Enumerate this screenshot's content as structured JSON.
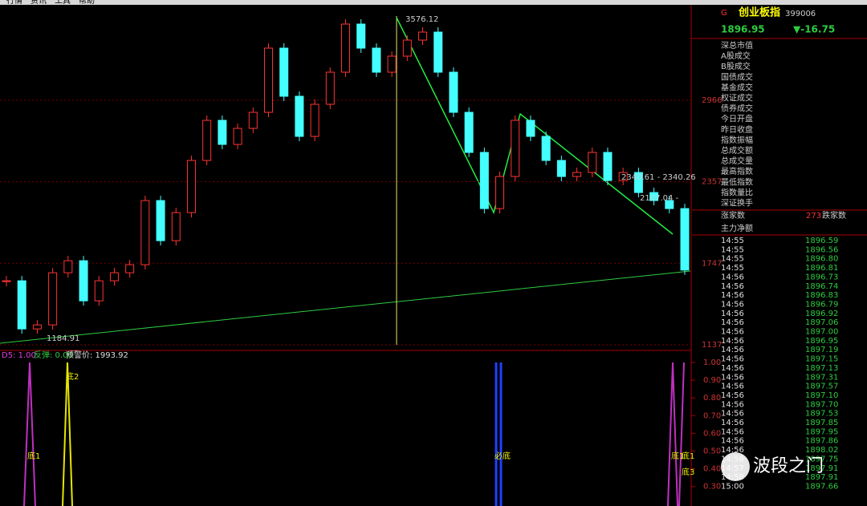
{
  "menu": [
    "行情",
    "资讯",
    "工具",
    "帮助"
  ],
  "price_chart": {
    "ylim": [
      1095,
      3686
    ],
    "yticks": [
      2966,
      2357,
      1747,
      1137
    ],
    "closes": [
      1616,
      1256,
      1286,
      1676,
      1766,
      1466,
      1616,
      1676,
      1736,
      2216,
      1916,
      2126,
      2516,
      2816,
      2636,
      2756,
      2876,
      3356,
      2996,
      2696,
      2936,
      3176,
      3536,
      3356,
      3176,
      3296,
      3416,
      3476,
      3176,
      2876,
      2576,
      2156,
      2396,
      2816,
      2696,
      2516,
      2396,
      2426,
      2576,
      2366,
      2426,
      2276,
      2216,
      2156,
      1696
    ],
    "annotations": [
      "3576.12",
      "1184.91",
      "2340.61 - 2340.26",
      "2107.04 -"
    ]
  },
  "indicator": {
    "legend": [
      "D5: 1.00",
      "反弹: 0.00",
      "预警价: 1993.92"
    ],
    "ylim": [
      0.2,
      1.07
    ],
    "yticks": [
      {
        "value": 1,
        "label": "1.00"
      },
      {
        "value": 0.9,
        "label": "0.90"
      },
      {
        "value": 0.8,
        "label": "0.80"
      },
      {
        "value": 0.7,
        "label": "0.70"
      },
      {
        "value": 0.6,
        "label": "0.60"
      },
      {
        "value": 0.5,
        "label": "0.50"
      },
      {
        "value": 0.4,
        "label": "0.40"
      },
      {
        "value": 0.3,
        "label": "0.30"
      }
    ],
    "labels": [
      "底1",
      "底2",
      "必底",
      "底1",
      "底1",
      "底3"
    ]
  },
  "panel": {
    "flag": "G",
    "name": "创业板指",
    "code": "399006",
    "price": "1896.95",
    "change": "▼-16.75",
    "fields": [
      "深总市值",
      "A股成交",
      "B股成交",
      "国债成交",
      "基金成交",
      "权证成交",
      "债券成交",
      "今日开盘",
      "昨日收盘",
      "指数振幅",
      "总成交额",
      "总成交量",
      "最高指数",
      "最低指数",
      "指数量比",
      "深证换手"
    ],
    "up_label": "涨家数",
    "up_count": "273",
    "down_label": "跌家数",
    "net_label": "主力净额",
    "ticks": [
      [
        "14:55",
        "1896.59"
      ],
      [
        "14:55",
        "1896.56"
      ],
      [
        "14:55",
        "1896.80"
      ],
      [
        "14:55",
        "1896.81"
      ],
      [
        "14:56",
        "1896.73"
      ],
      [
        "14:56",
        "1896.74"
      ],
      [
        "14:56",
        "1896.83"
      ],
      [
        "14:56",
        "1896.79"
      ],
      [
        "14:56",
        "1896.92"
      ],
      [
        "14:56",
        "1897.06"
      ],
      [
        "14:56",
        "1897.00"
      ],
      [
        "14:56",
        "1896.95"
      ],
      [
        "14:56",
        "1897.19"
      ],
      [
        "14:56",
        "1897.15"
      ],
      [
        "14:56",
        "1897.13"
      ],
      [
        "14:56",
        "1897.31"
      ],
      [
        "14:56",
        "1897.57"
      ],
      [
        "14:56",
        "1897.10"
      ],
      [
        "14:56",
        "1897.70"
      ],
      [
        "14:56",
        "1897.53"
      ],
      [
        "14:56",
        "1897.85"
      ],
      [
        "14:56",
        "1897.95"
      ],
      [
        "14:56",
        "1897.86"
      ],
      [
        "14:56",
        "1898.02"
      ],
      [
        "14:56",
        "1897.75"
      ],
      [
        "14:57",
        "1897.91"
      ],
      [
        "14:58",
        "1897.91"
      ],
      [
        "15:00",
        "1897.66"
      ]
    ]
  },
  "watermark": "波段之门"
}
